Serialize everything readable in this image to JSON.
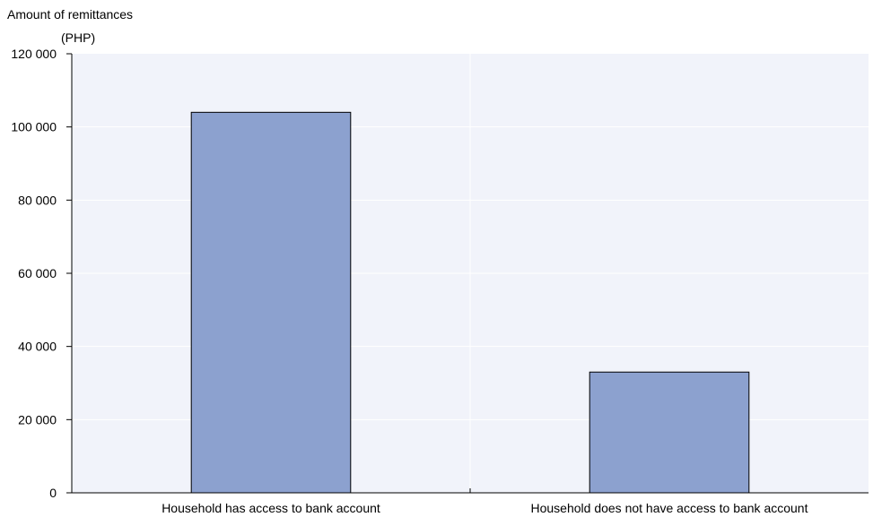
{
  "chart_data": {
    "type": "bar",
    "title": "",
    "ylabel_line1": "Amount of remittances",
    "ylabel_line2": "(PHP)",
    "xlabel": "",
    "categories": [
      "Household has access to bank account",
      "Household does not have access to bank account"
    ],
    "values": [
      104000,
      33000
    ],
    "ylim": [
      0,
      120000
    ],
    "yticks": [
      0,
      20000,
      40000,
      60000,
      80000,
      100000,
      120000
    ],
    "ytick_labels": [
      "0",
      "20 000",
      "40 000",
      "60 000",
      "80 000",
      "100 000",
      "120 000"
    ],
    "grid": true,
    "legend": "none",
    "colors": {
      "bar": "#8ca1cf",
      "bar_edge": "#000000",
      "plot_bg": "#f1f3fa",
      "grid": "#ffffff"
    }
  }
}
